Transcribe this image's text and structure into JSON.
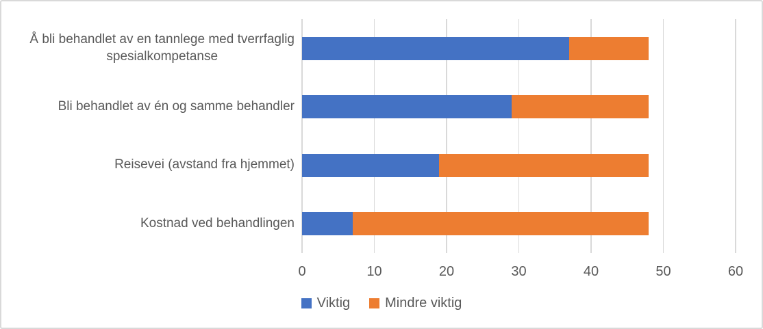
{
  "figure": {
    "background": "#FFFFFF",
    "border_color": "#D9D9D9",
    "text_color": "#595959",
    "gridline_color": "#D9D9D9"
  },
  "legend": {
    "items": [
      {
        "label": "Viktig",
        "color": "#4472C4"
      },
      {
        "label": "Mindre viktig",
        "color": "#ED7D31"
      }
    ]
  },
  "chart_data": {
    "type": "bar",
    "orientation": "horizontal",
    "stacked": true,
    "title": "",
    "xlabel": "",
    "ylabel": "",
    "categories": [
      "Å bli behandlet av en tannlege med tverrfaglig\nspesialkompetanse",
      "Bli behandlet av én og samme behandler",
      "Reisevei (avstand fra hjemmet)",
      "Kostnad ved behandlingen"
    ],
    "series": [
      {
        "name": "Viktig",
        "color": "#4472C4",
        "values": [
          37,
          29,
          19,
          7
        ]
      },
      {
        "name": "Mindre viktig",
        "color": "#ED7D31",
        "values": [
          11,
          19,
          29,
          41
        ]
      }
    ],
    "stack_totals": [
      48,
      48,
      48,
      48
    ],
    "xlim": [
      0,
      60
    ],
    "x_ticks": [
      0,
      10,
      20,
      30,
      40,
      50,
      60
    ],
    "grid": "vertical-major",
    "legend_position": "bottom-center"
  }
}
